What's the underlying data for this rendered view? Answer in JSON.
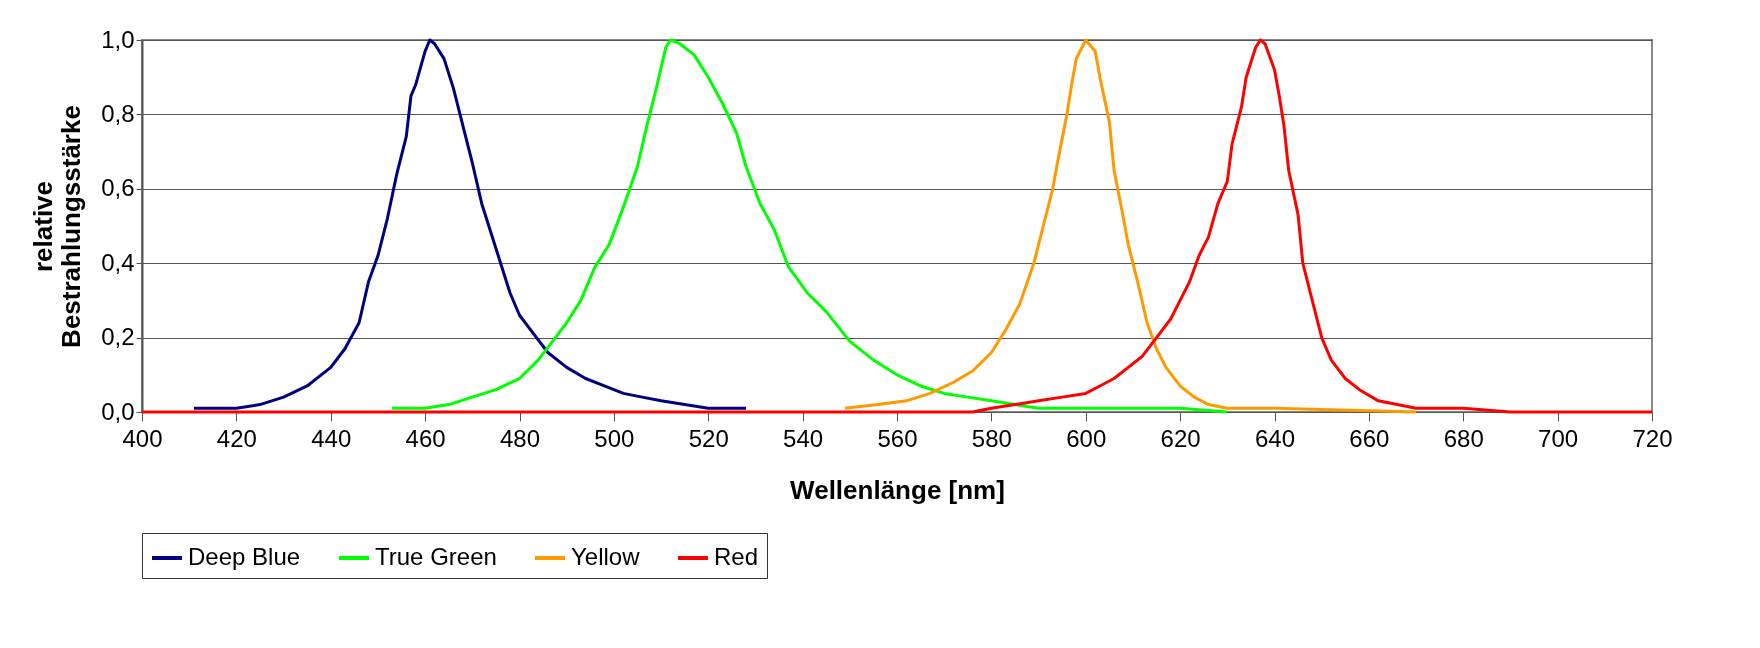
{
  "chart_data": {
    "type": "line",
    "xlabel": "Wellenlänge [nm]",
    "ylabel": "relative Bestrahlungsstärke",
    "xlim": [
      400,
      720
    ],
    "xticks": [
      400,
      420,
      440,
      460,
      480,
      500,
      520,
      540,
      560,
      580,
      600,
      620,
      640,
      660,
      680,
      700,
      720
    ],
    "ylim": [
      0,
      1
    ],
    "yticks": [
      {
        "value": 0,
        "label": "0,0"
      },
      {
        "value": 0.2,
        "label": "0,2"
      },
      {
        "value": 0.4,
        "label": "0,4"
      },
      {
        "value": 0.6,
        "label": "0,6"
      },
      {
        "value": 0.8,
        "label": "0,8"
      },
      {
        "value": 1,
        "label": "1,0"
      }
    ],
    "grid": "y",
    "legend": "bottom",
    "marker": "none",
    "line_style": "solid",
    "series": [
      {
        "name": "Deep Blue",
        "color": "#000080",
        "x": [
          411,
          420,
          425,
          430,
          435,
          440,
          443,
          446,
          448,
          450,
          452,
          454,
          456,
          457,
          458,
          460,
          461,
          462,
          464,
          466,
          468,
          470,
          472,
          474,
          476,
          478,
          480,
          483,
          486,
          490,
          494,
          498,
          502,
          506,
          510,
          515,
          520,
          528
        ],
        "values": [
          0.01,
          0.01,
          0.02,
          0.04,
          0.07,
          0.12,
          0.17,
          0.24,
          0.35,
          0.42,
          0.52,
          0.64,
          0.74,
          0.85,
          0.88,
          0.97,
          1.0,
          0.99,
          0.95,
          0.87,
          0.77,
          0.67,
          0.56,
          0.48,
          0.4,
          0.32,
          0.26,
          0.21,
          0.16,
          0.12,
          0.09,
          0.07,
          0.05,
          0.04,
          0.03,
          0.02,
          0.01,
          0.01
        ]
      },
      {
        "name": "True Green",
        "color": "#00ff00",
        "x": [
          453,
          460,
          465,
          470,
          475,
          480,
          484,
          487,
          490,
          493,
          496,
          499,
          502,
          505,
          507,
          509,
          511,
          512,
          514,
          517,
          520,
          523,
          526,
          528,
          531,
          534,
          537,
          541,
          545,
          550,
          555,
          560,
          565,
          570,
          575,
          580,
          585,
          590,
          600,
          620,
          630
        ],
        "values": [
          0.01,
          0.01,
          0.02,
          0.04,
          0.06,
          0.09,
          0.14,
          0.19,
          0.24,
          0.3,
          0.39,
          0.45,
          0.55,
          0.66,
          0.77,
          0.87,
          0.98,
          1.0,
          0.99,
          0.96,
          0.9,
          0.83,
          0.75,
          0.66,
          0.56,
          0.49,
          0.39,
          0.32,
          0.27,
          0.19,
          0.14,
          0.1,
          0.07,
          0.05,
          0.04,
          0.03,
          0.02,
          0.01,
          0.01,
          0.01,
          0
        ]
      },
      {
        "name": "Yellow",
        "color": "#ff9900",
        "x": [
          549,
          556,
          562,
          567,
          572,
          576,
          580,
          583,
          586,
          589,
          591,
          593,
          594,
          596,
          597,
          598,
          600,
          602,
          603,
          605,
          606,
          608,
          609,
          611,
          613,
          615,
          617,
          620,
          623,
          626,
          630,
          640,
          670
        ],
        "values": [
          0.01,
          0.02,
          0.03,
          0.05,
          0.08,
          0.11,
          0.16,
          0.22,
          0.29,
          0.4,
          0.5,
          0.6,
          0.67,
          0.8,
          0.88,
          0.95,
          1.0,
          0.97,
          0.9,
          0.78,
          0.65,
          0.52,
          0.45,
          0.35,
          0.24,
          0.17,
          0.12,
          0.07,
          0.04,
          0.02,
          0.01,
          0.01,
          0
        ]
      },
      {
        "name": "Red",
        "color": "#ff0000",
        "x": [
          400,
          576,
          580,
          585,
          590,
          595,
          600,
          603,
          606,
          609,
          612,
          615,
          618,
          620,
          622,
          624,
          626,
          628,
          630,
          631,
          633,
          634,
          636,
          637,
          638,
          640,
          641,
          642,
          643,
          645,
          646,
          648,
          650,
          652,
          655,
          658,
          662,
          666,
          670,
          680,
          690,
          720
        ],
        "values": [
          0,
          0,
          0.01,
          0.02,
          0.03,
          0.04,
          0.05,
          0.07,
          0.09,
          0.12,
          0.15,
          0.2,
          0.25,
          0.3,
          0.35,
          0.42,
          0.47,
          0.56,
          0.62,
          0.72,
          0.82,
          0.9,
          0.98,
          1.0,
          0.99,
          0.92,
          0.85,
          0.77,
          0.65,
          0.53,
          0.4,
          0.3,
          0.2,
          0.14,
          0.09,
          0.06,
          0.03,
          0.02,
          0.01,
          0.01,
          0,
          0
        ]
      }
    ]
  }
}
